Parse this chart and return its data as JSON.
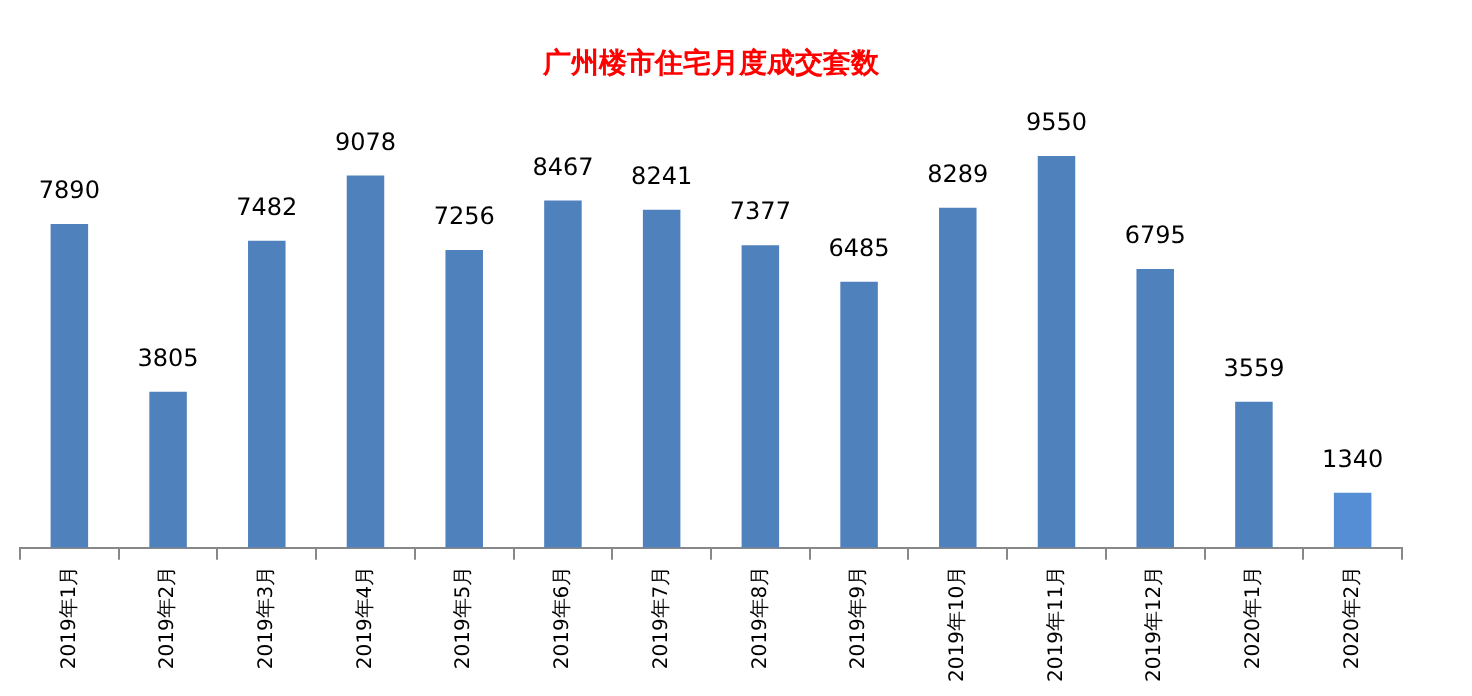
{
  "chart_data": {
    "type": "bar",
    "title": "广州楼市住宅月度成交套数",
    "categories": [
      "2019年1月",
      "2019年2月",
      "2019年3月",
      "2019年4月",
      "2019年5月",
      "2019年6月",
      "2019年7月",
      "2019年8月",
      "2019年9月",
      "2019年10月",
      "2019年11月",
      "2019年12月",
      "2020年1月",
      "2020年2月"
    ],
    "values": [
      7890,
      3805,
      7482,
      9078,
      7256,
      8467,
      8241,
      7377,
      6485,
      8289,
      9550,
      6795,
      3559,
      1340
    ],
    "colors": [
      "#4f81bd",
      "#4f81bd",
      "#4f81bd",
      "#4f81bd",
      "#4f81bd",
      "#4f81bd",
      "#4f81bd",
      "#4f81bd",
      "#4f81bd",
      "#4f81bd",
      "#4f81bd",
      "#4f81bd",
      "#4f81bd",
      "#558ed5"
    ],
    "data_labels": true,
    "grid": false,
    "legend": false
  }
}
